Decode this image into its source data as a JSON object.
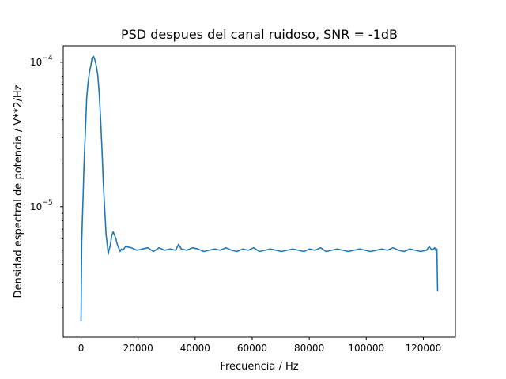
{
  "chart_data": {
    "type": "line",
    "title": "PSD despues del canal ruidoso, SNR = -1dB",
    "xlabel": "Frecuencia / Hz",
    "ylabel": "Densidad espectral de potencia / V**2/Hz",
    "xlim": [
      -6250,
      131250
    ],
    "ylim": [
      1.25e-06,
      0.00013
    ],
    "yscale": "log",
    "x_ticks": [
      0,
      20000,
      40000,
      60000,
      80000,
      100000,
      120000
    ],
    "x_tick_labels": [
      "0",
      "20000",
      "40000",
      "60000",
      "80000",
      "100000",
      "120000"
    ],
    "y_ticks": [
      {
        "value": 1e-05,
        "base": "10",
        "exp": "−5"
      },
      {
        "value": 0.0001,
        "base": "10",
        "exp": "−4"
      }
    ],
    "grid": false,
    "series": [
      {
        "color": "#1f77b4",
        "x": [
          0,
          244,
          488,
          732,
          977,
          1221,
          1465,
          1709,
          1953,
          2441,
          2930,
          3418,
          3906,
          4395,
          4883,
          5371,
          5859,
          6348,
          6836,
          7324,
          7813,
          8301,
          8789,
          9277,
          9521,
          9766,
          10254,
          10742,
          11230,
          11719,
          12207,
          12695,
          13184,
          13672,
          14160,
          14648,
          15625,
          17578,
          19531,
          21484,
          23438,
          25391,
          27344,
          29297,
          31250,
          33203,
          34180,
          35156,
          37109,
          39063,
          41016,
          42969,
          44922,
          46875,
          48828,
          50781,
          52734,
          54688,
          56641,
          58594,
          60547,
          62500,
          64453,
          66406,
          68359,
          70313,
          72266,
          74219,
          76172,
          78125,
          80078,
          82031,
          83984,
          85938,
          87891,
          89844,
          91797,
          93750,
          95703,
          97656,
          99609,
          101563,
          103516,
          105469,
          107422,
          109375,
          111328,
          113281,
          115234,
          117188,
          119141,
          121094,
          122070,
          123047,
          124023,
          124512,
          124756,
          125000
        ],
        "y": [
          1.6e-06,
          5.8e-06,
          8.5e-06,
          1.2e-05,
          1.8e-05,
          2.4e-05,
          3.1e-05,
          4.1e-05,
          5.6e-05,
          7.2e-05,
          8.5e-05,
          9.5e-05,
          0.000108,
          0.00011,
          0.000103,
          9.4e-05,
          8.1e-05,
          6.2e-05,
          4.1e-05,
          2.5e-05,
          1.45e-05,
          9.5e-06,
          6.4e-06,
          5.3e-06,
          4.7e-06,
          5e-06,
          5.4e-06,
          6.3e-06,
          6.7e-06,
          6.4e-06,
          6e-06,
          5.5e-06,
          5.2e-06,
          4.9e-06,
          5.1e-06,
          5e-06,
          5.3e-06,
          5.2e-06,
          5e-06,
          5.1e-06,
          5.2e-06,
          4.9e-06,
          5.2e-06,
          5e-06,
          5.1e-06,
          5e-06,
          5.5e-06,
          5.1e-06,
          5e-06,
          5.2e-06,
          5.1e-06,
          4.9e-06,
          5e-06,
          5.1e-06,
          5e-06,
          5.2e-06,
          5e-06,
          4.9e-06,
          5.1e-06,
          5e-06,
          5.2e-06,
          4.9e-06,
          5e-06,
          5.1e-06,
          5e-06,
          4.9e-06,
          5e-06,
          5.1e-06,
          5e-06,
          4.9e-06,
          5.1e-06,
          5e-06,
          5.2e-06,
          4.9e-06,
          5e-06,
          5.1e-06,
          5e-06,
          4.9e-06,
          5e-06,
          5.1e-06,
          5e-06,
          4.9e-06,
          5e-06,
          5.1e-06,
          5e-06,
          5.2e-06,
          5e-06,
          4.9e-06,
          5.1e-06,
          5e-06,
          4.9e-06,
          5e-06,
          5.3e-06,
          5e-06,
          5.2e-06,
          4.9e-06,
          5.1e-06,
          2.6e-06
        ]
      }
    ]
  }
}
